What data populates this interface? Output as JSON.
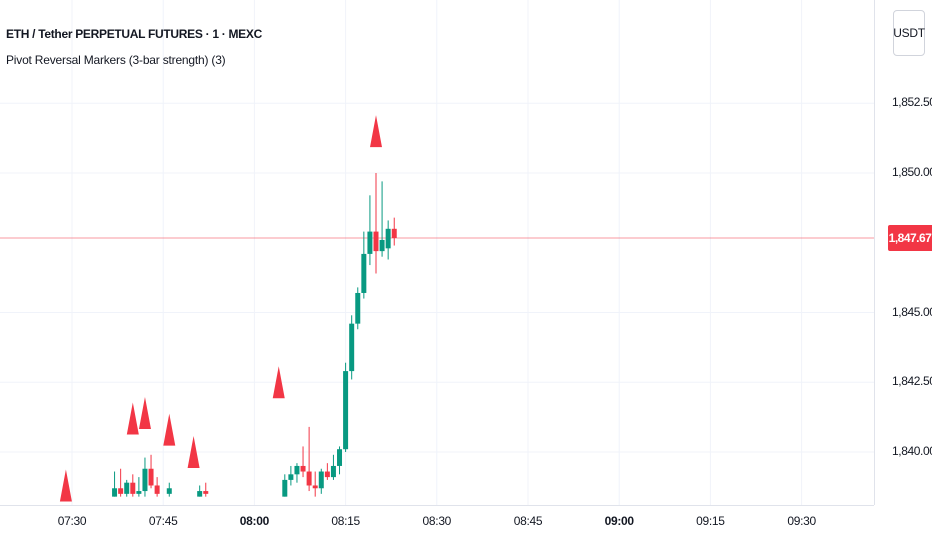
{
  "legend": {
    "symbol_title": "ETH / Tether PERPETUAL FUTURES · 1 · MEXC",
    "indicator": "Pivot Reversal Markers (3-bar strength) (3)"
  },
  "price_scale": {
    "currency": "USDT",
    "labels": [
      {
        "text": "1,852.50",
        "value": 1852.5
      },
      {
        "text": "1,850.00",
        "value": 1850.0
      },
      {
        "text": "1,845.00",
        "value": 1845.0
      },
      {
        "text": "1,842.50",
        "value": 1842.5
      },
      {
        "text": "1,840.00",
        "value": 1840.0
      }
    ],
    "current_price": {
      "text": "1,847.67",
      "value": 1847.67
    }
  },
  "time_scale": {
    "labels": [
      {
        "text": "07:30",
        "minute": 0,
        "bold": false
      },
      {
        "text": "07:45",
        "minute": 15,
        "bold": false
      },
      {
        "text": "08:00",
        "minute": 30,
        "bold": true
      },
      {
        "text": "08:15",
        "minute": 45,
        "bold": false
      },
      {
        "text": "08:30",
        "minute": 60,
        "bold": false
      },
      {
        "text": "08:45",
        "minute": 75,
        "bold": false
      },
      {
        "text": "09:00",
        "minute": 90,
        "bold": true
      },
      {
        "text": "09:15",
        "minute": 105,
        "bold": false
      },
      {
        "text": "09:30",
        "minute": 120,
        "bold": false
      }
    ]
  },
  "colors": {
    "up": "#089981",
    "down": "#f23645",
    "marker": "#f23645",
    "grid": "#f0f3fa",
    "current_price_line": "#f23645"
  },
  "chart_data": {
    "type": "candlestick",
    "title": "ETH / Tether PERPETUAL FUTURES · 1 · MEXC",
    "x_unit": "minutes after 07:30",
    "ylim": [
      1838.4,
      1855.0
    ],
    "grid": true,
    "candles": [
      {
        "t": 7,
        "o": 1838.4,
        "h": 1839.3,
        "l": 1838.4,
        "c": 1838.7
      },
      {
        "t": 8,
        "o": 1838.7,
        "h": 1839.4,
        "l": 1838.4,
        "c": 1838.5
      },
      {
        "t": 9,
        "o": 1838.5,
        "h": 1839.0,
        "l": 1838.4,
        "c": 1838.9
      },
      {
        "t": 10,
        "o": 1838.9,
        "h": 1839.2,
        "l": 1838.4,
        "c": 1838.5
      },
      {
        "t": 11,
        "o": 1838.5,
        "h": 1839.1,
        "l": 1838.4,
        "c": 1838.6
      },
      {
        "t": 12,
        "o": 1838.6,
        "h": 1839.8,
        "l": 1838.4,
        "c": 1839.4
      },
      {
        "t": 13,
        "o": 1839.4,
        "h": 1839.9,
        "l": 1838.7,
        "c": 1838.8
      },
      {
        "t": 14,
        "o": 1838.8,
        "h": 1839.1,
        "l": 1838.4,
        "c": 1838.5
      },
      {
        "t": 16,
        "o": 1838.5,
        "h": 1838.9,
        "l": 1838.4,
        "c": 1838.7
      },
      {
        "t": 21,
        "o": 1838.4,
        "h": 1838.8,
        "l": 1838.4,
        "c": 1838.6
      },
      {
        "t": 22,
        "o": 1838.6,
        "h": 1838.9,
        "l": 1838.4,
        "c": 1838.5
      },
      {
        "t": 35,
        "o": 1838.4,
        "h": 1839.2,
        "l": 1838.4,
        "c": 1839.0
      },
      {
        "t": 36,
        "o": 1839.0,
        "h": 1839.5,
        "l": 1838.8,
        "c": 1839.2
      },
      {
        "t": 37,
        "o": 1839.2,
        "h": 1839.6,
        "l": 1838.9,
        "c": 1839.5
      },
      {
        "t": 38,
        "o": 1839.5,
        "h": 1840.2,
        "l": 1839.1,
        "c": 1839.3
      },
      {
        "t": 39,
        "o": 1839.3,
        "h": 1840.9,
        "l": 1838.6,
        "c": 1838.8
      },
      {
        "t": 40,
        "o": 1838.8,
        "h": 1839.3,
        "l": 1838.4,
        "c": 1838.7
      },
      {
        "t": 41,
        "o": 1838.7,
        "h": 1839.4,
        "l": 1838.5,
        "c": 1839.3
      },
      {
        "t": 42,
        "o": 1839.3,
        "h": 1839.6,
        "l": 1839.0,
        "c": 1839.1
      },
      {
        "t": 43,
        "o": 1839.1,
        "h": 1839.9,
        "l": 1839.0,
        "c": 1839.5
      },
      {
        "t": 44,
        "o": 1839.5,
        "h": 1840.2,
        "l": 1839.2,
        "c": 1840.1
      },
      {
        "t": 45,
        "o": 1840.1,
        "h": 1843.2,
        "l": 1840.0,
        "c": 1842.9
      },
      {
        "t": 46,
        "o": 1842.9,
        "h": 1844.9,
        "l": 1842.6,
        "c": 1844.6
      },
      {
        "t": 47,
        "o": 1844.6,
        "h": 1845.9,
        "l": 1844.4,
        "c": 1845.7
      },
      {
        "t": 48,
        "o": 1845.7,
        "h": 1847.9,
        "l": 1845.5,
        "c": 1847.1
      },
      {
        "t": 49,
        "o": 1847.1,
        "h": 1849.2,
        "l": 1846.7,
        "c": 1847.9
      },
      {
        "t": 50,
        "o": 1847.9,
        "h": 1850.0,
        "l": 1846.4,
        "c": 1847.2
      },
      {
        "t": 51,
        "o": 1847.2,
        "h": 1849.7,
        "l": 1847.0,
        "c": 1847.6
      },
      {
        "t": 52,
        "o": 1847.3,
        "h": 1848.3,
        "l": 1846.9,
        "c": 1848.0
      },
      {
        "t": 53,
        "o": 1848.0,
        "h": 1848.4,
        "l": 1847.4,
        "c": 1847.67
      }
    ],
    "pivot_markers": [
      {
        "t": -1,
        "price": 1838.8
      },
      {
        "t": 10,
        "price": 1841.2
      },
      {
        "t": 12,
        "price": 1841.4
      },
      {
        "t": 16,
        "price": 1840.8
      },
      {
        "t": 20,
        "price": 1840.0
      },
      {
        "t": 34,
        "price": 1842.5
      },
      {
        "t": 50,
        "price": 1851.5
      }
    ]
  }
}
